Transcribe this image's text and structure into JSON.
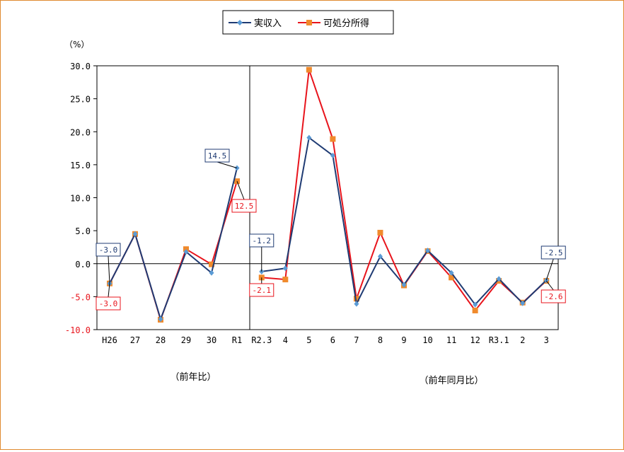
{
  "chart_data": {
    "type": "line",
    "unit_label": "（%）",
    "ylim": [
      -10,
      30
    ],
    "y_ticks": [
      "30.0",
      "25.0",
      "20.0",
      "15.0",
      "10.0",
      "5.0",
      "0.0",
      "-5.0",
      "-10.0"
    ],
    "grid": false,
    "legend_position": "top-center",
    "colors": {
      "actual_income": "#1f3b73",
      "actual_income_marker": "#5b9bd5",
      "disposable_income": "#e8141c",
      "disposable_income_marker": "#f08a2c",
      "negative_tick": "#e8141c",
      "frame": "#e08a30"
    },
    "series": [
      {
        "name": "実収入",
        "color": "#1f3b73",
        "marker_color": "#5b9bd5",
        "marker": "diamond"
      },
      {
        "name": "可処分所得",
        "color": "#e8141c",
        "marker_color": "#f08a2c",
        "marker": "square"
      }
    ],
    "panels": [
      {
        "footer": "（前年比）",
        "categories": [
          "H26",
          "27",
          "28",
          "29",
          "30",
          "R1"
        ],
        "actual_income": [
          -3.0,
          4.5,
          -8.4,
          1.8,
          -1.4,
          14.5
        ],
        "disposable_income": [
          -3.0,
          4.5,
          -8.5,
          2.2,
          -0.1,
          12.5
        ],
        "annotations": [
          {
            "series": "actual_income",
            "index": 0,
            "text": "-3.0"
          },
          {
            "series": "disposable_income",
            "index": 0,
            "text": "-3.0"
          },
          {
            "series": "actual_income",
            "index": 5,
            "text": "14.5"
          },
          {
            "series": "disposable_income",
            "index": 5,
            "text": "12.5"
          }
        ]
      },
      {
        "footer": "（前年同月比）",
        "categories": [
          "R2.3",
          "4",
          "5",
          "6",
          "7",
          "8",
          "9",
          "10",
          "11",
          "12",
          "R3.1",
          "2",
          "3"
        ],
        "actual_income": [
          -1.2,
          -0.7,
          19.1,
          16.4,
          -6.1,
          1.1,
          -3.2,
          2.0,
          -1.4,
          -6.2,
          -2.3,
          -6.0,
          -2.5
        ],
        "disposable_income": [
          -2.1,
          -2.4,
          29.4,
          18.9,
          -5.3,
          4.7,
          -3.3,
          1.9,
          -2.1,
          -7.1,
          -2.6,
          -5.9,
          -2.6
        ],
        "annotations": [
          {
            "series": "actual_income",
            "index": 0,
            "text": "-1.2"
          },
          {
            "series": "disposable_income",
            "index": 0,
            "text": "-2.1"
          },
          {
            "series": "actual_income",
            "index": 12,
            "text": "-2.5"
          },
          {
            "series": "disposable_income",
            "index": 12,
            "text": "-2.6"
          }
        ]
      }
    ]
  }
}
